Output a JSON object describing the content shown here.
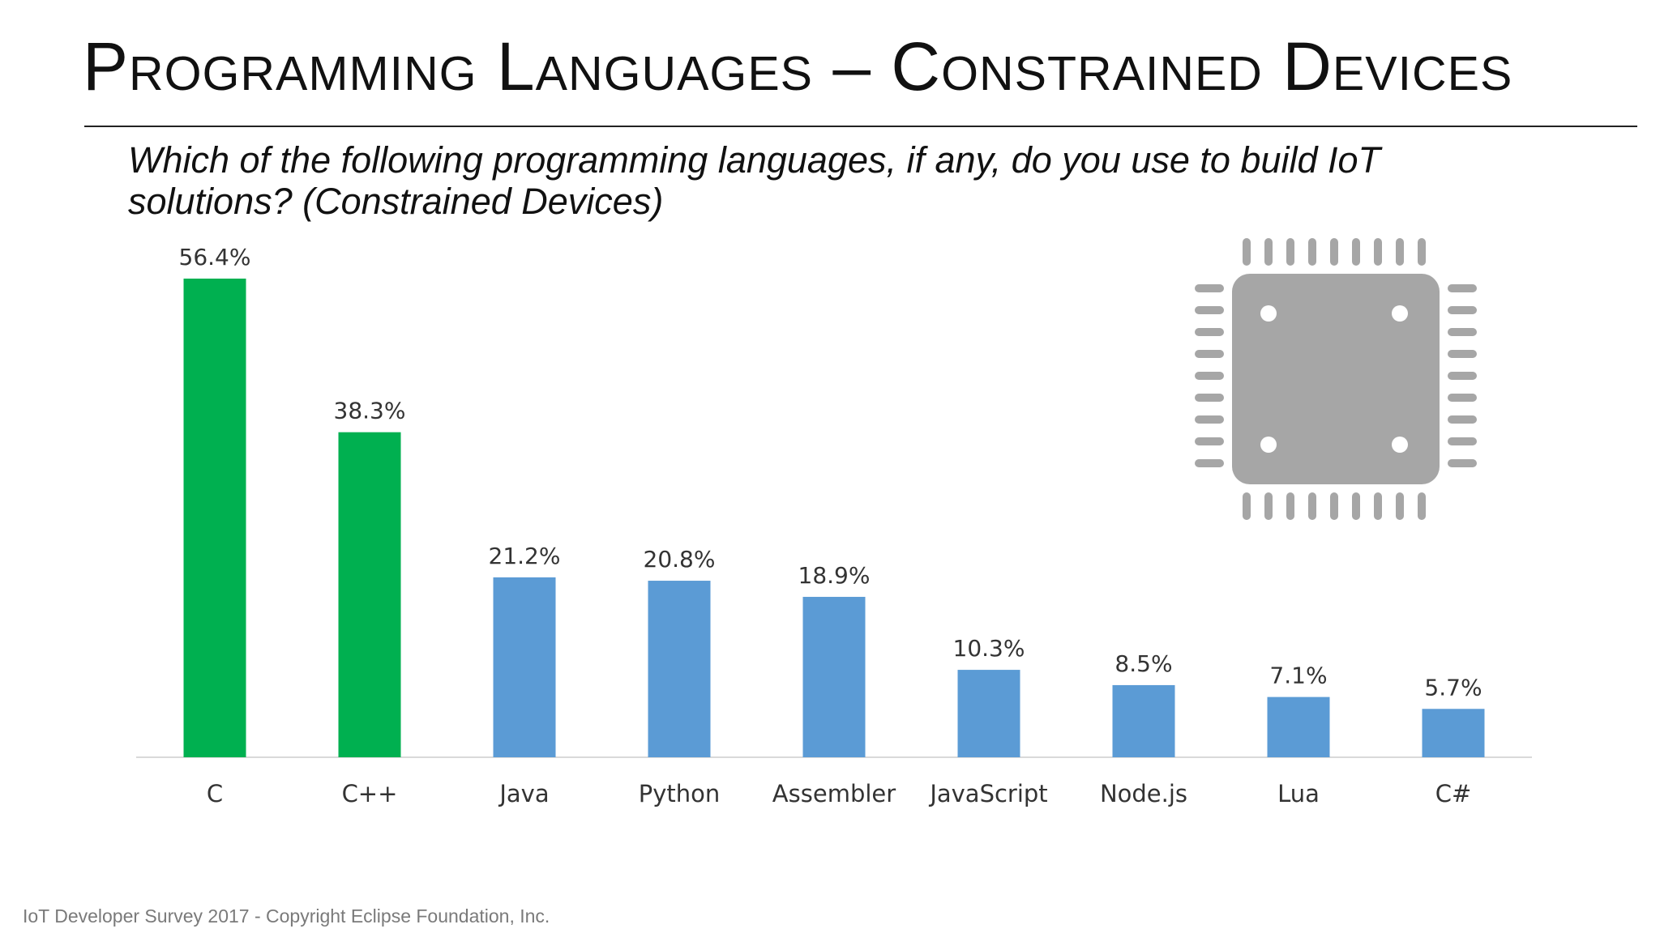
{
  "slide": {
    "title": "Programming Languages – Constrained Devices",
    "question": "Which of the following programming languages, if any, do you use to build IoT solutions? (Constrained Devices)",
    "footer": "IoT Developer Survey 2017 - Copyright Eclipse Foundation, Inc."
  },
  "colors": {
    "highlight": "#00b050",
    "default": "#5b9bd5",
    "axis": "#d9d9d9",
    "chip": "#a6a6a6"
  },
  "icons": {
    "chip": "microchip-icon"
  },
  "chart_data": {
    "type": "bar",
    "title": "",
    "xlabel": "",
    "ylabel": "",
    "ylim": [
      0,
      56.4
    ],
    "grid": false,
    "legend": "none",
    "categories": [
      "C",
      "C++",
      "Java",
      "Python",
      "Assembler",
      "JavaScript",
      "Node.js",
      "Lua",
      "C#"
    ],
    "values": [
      56.4,
      38.3,
      21.2,
      20.8,
      18.9,
      10.3,
      8.5,
      7.1,
      5.7
    ],
    "data_labels": [
      "56.4%",
      "38.3%",
      "21.2%",
      "20.8%",
      "18.9%",
      "10.3%",
      "8.5%",
      "7.1%",
      "5.7%"
    ],
    "highlighted": [
      "C",
      "C++"
    ]
  }
}
